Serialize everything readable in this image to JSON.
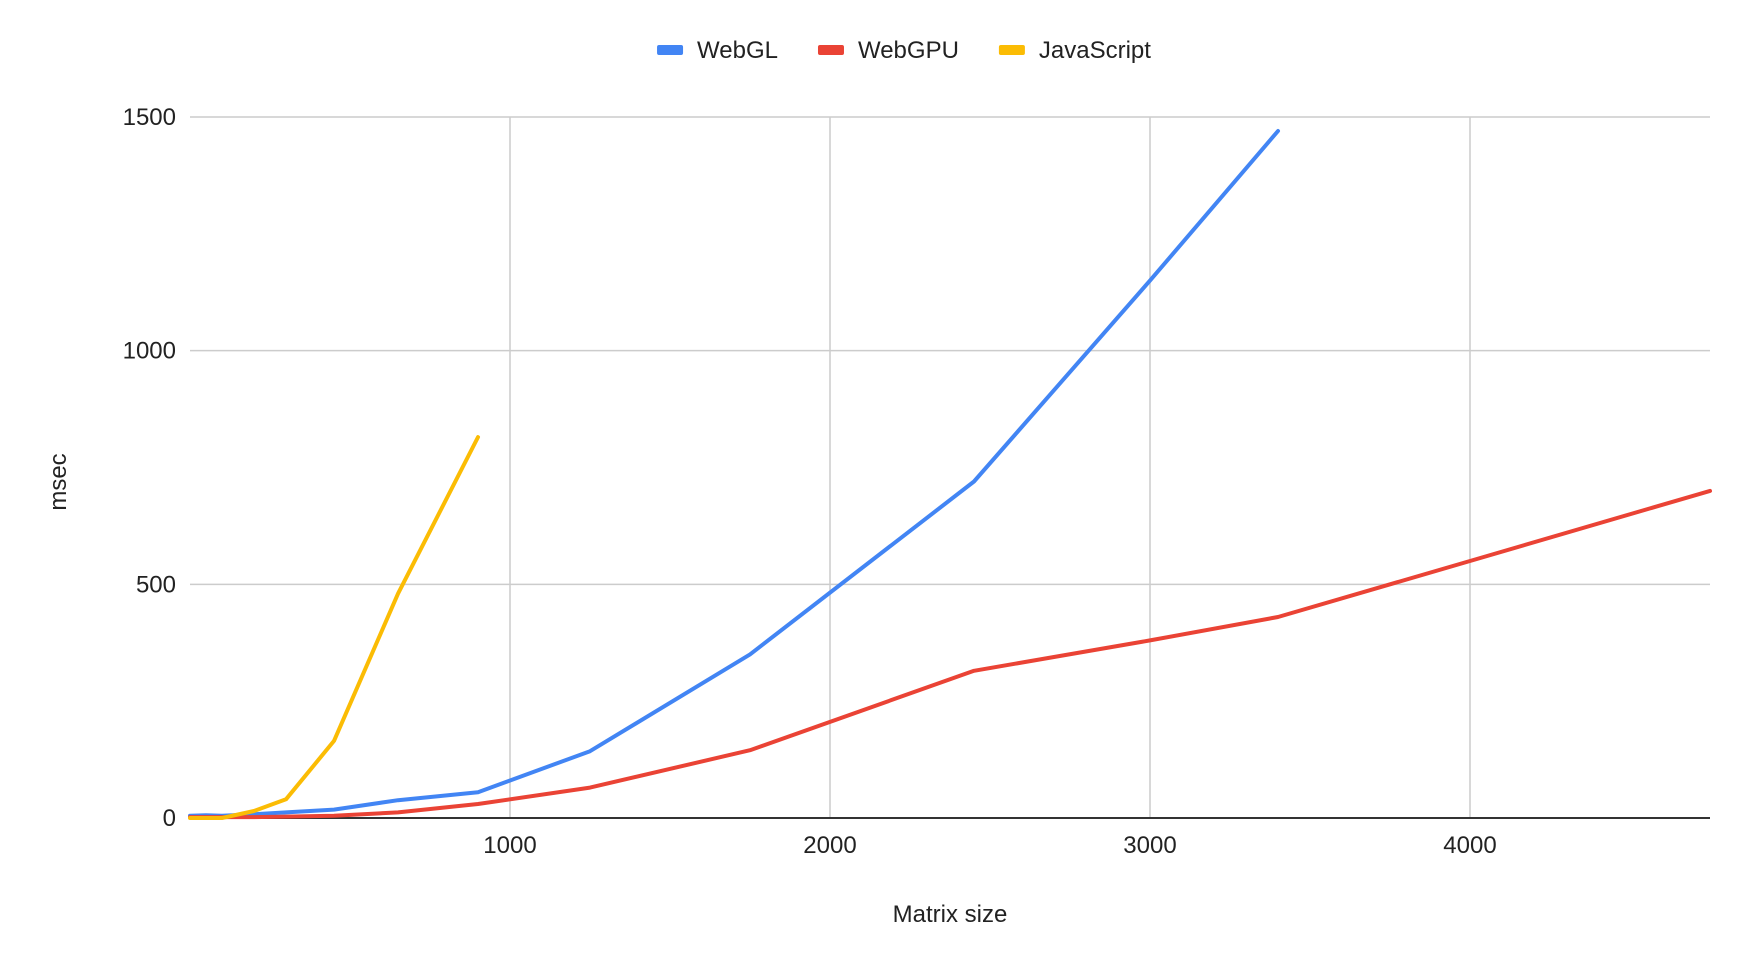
{
  "chart_data": {
    "type": "line",
    "title": "",
    "xlabel": "Matrix size",
    "ylabel": "msec",
    "xlim": [
      0,
      4750
    ],
    "ylim": [
      0,
      1500
    ],
    "x_ticks": [
      1000,
      2000,
      3000,
      4000
    ],
    "y_ticks": [
      0,
      500,
      1000,
      1500
    ],
    "grid": true,
    "legend_position": "top",
    "series": [
      {
        "name": "WebGL",
        "color": "#4285f4",
        "x": [
          0,
          50,
          100,
          200,
          300,
          450,
          650,
          900,
          1250,
          1750,
          2450,
          3000,
          3400
        ],
        "y": [
          5,
          6,
          5,
          8,
          12,
          18,
          38,
          55,
          143,
          350,
          720,
          1150,
          1470
        ]
      },
      {
        "name": "WebGPU",
        "color": "#ea4335",
        "x": [
          0,
          100,
          200,
          300,
          450,
          650,
          900,
          1250,
          1750,
          2450,
          3000,
          3400,
          4000,
          4750
        ],
        "y": [
          2,
          2,
          2,
          3,
          5,
          12,
          30,
          65,
          145,
          315,
          380,
          430,
          550,
          700
        ]
      },
      {
        "name": "JavaScript",
        "color": "#fbbc04",
        "x": [
          0,
          100,
          200,
          300,
          450,
          650,
          900
        ],
        "y": [
          0,
          0,
          15,
          40,
          165,
          480,
          815
        ]
      }
    ]
  }
}
